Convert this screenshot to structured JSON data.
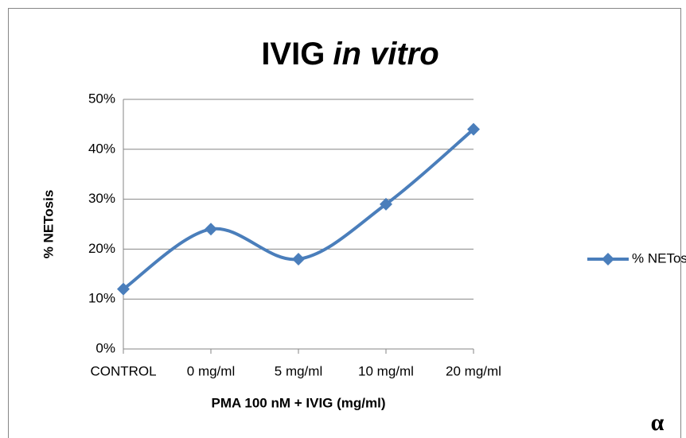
{
  "chart_data": {
    "type": "line",
    "title": [
      {
        "text": "IVIG",
        "italic": false
      },
      {
        "text": "in vitro",
        "italic": true
      }
    ],
    "x_label": "PMA 100 nM + IVIG (mg/ml)",
    "y_label": "% NETosis",
    "annotation": "α",
    "categories": [
      "CONTROL",
      "0 mg/ml",
      "5 mg/ml",
      "10 mg/ml",
      "20 mg/ml"
    ],
    "series": [
      {
        "name": "% NETosis",
        "color": "#4a7ebb",
        "values": [
          12,
          24,
          18,
          29,
          44
        ]
      }
    ],
    "ylim": [
      0,
      50
    ],
    "yticks": [
      {
        "value": 0,
        "label": "0%"
      },
      {
        "value": 10,
        "label": "10%"
      },
      {
        "value": 20,
        "label": "20%"
      },
      {
        "value": 30,
        "label": "30%"
      },
      {
        "value": 40,
        "label": "40%"
      },
      {
        "value": 50,
        "label": "50%"
      }
    ],
    "grid": true,
    "smooth": true,
    "legend": "right"
  }
}
